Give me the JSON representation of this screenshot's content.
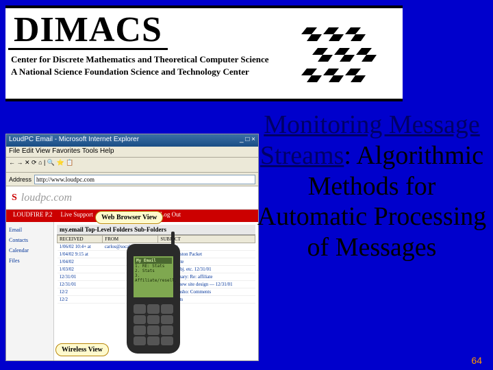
{
  "header": {
    "logo": "DIMACS",
    "sub1": "Center for Discrete Mathematics and Theoretical Computer Science",
    "sub2": "A National Science Foundation Science and Technology Center"
  },
  "title": {
    "line1": "Monitoring Message Streams",
    "colon": ":",
    "rest": "Algorithmic Methods for Automatic Processing of Messages"
  },
  "page_number": "64",
  "screenshot": {
    "window_title": "LoudPC Email - Microsoft Internet Explorer",
    "menubar": "File  Edit  View  Favorites  Tools  Help",
    "address_label": "Address",
    "address_value": "http://www.loudpc.com",
    "banner_logo_s": "S",
    "banner_logo_rest": "loudpc.com",
    "nav_items": [
      "LOUDFIRE P.2",
      "Live Support",
      "FAQ",
      "My Account",
      "Log Out"
    ],
    "sidebar_items": [
      "Email",
      "Contacts",
      "Calendar",
      "Files"
    ],
    "mail_header": "my.email   Top-Level Folders   Sub-Folders",
    "table_cols": [
      "RECEIVED",
      "FROM",
      "SUBJECT"
    ],
    "table_rows": [
      [
        "1/06/02 10:4+ at",
        "carlos@socable.com",
        "RE: Stats"
      ],
      [
        "1/04/02 9:15 at",
        "",
        "Month-Boston Packet"
      ],
      [
        "1/04/02",
        "",
        "Re: web site"
      ],
      [
        "1/03/02",
        "",
        "Re: Rev. obj. etc. 12/31/01"
      ],
      [
        "12/31/01",
        "",
        "RE: Summary: Re: affiliate"
      ],
      [
        "12/31/01",
        "",
        "Affiliate: new site design — 12/31/01"
      ],
      [
        "12/2",
        "",
        "Re: Screensho: Comments"
      ],
      [
        "12/2",
        "",
        "Screenshots"
      ]
    ],
    "callout_browser": "Web Browser View",
    "callout_wireless": "Wireless View",
    "phone_title": "My Email",
    "phone_lines": [
      "1. RE: Stats",
      "2. Stats",
      "3. Affiliate/resell."
    ]
  },
  "colors": {
    "background": "#0000cc",
    "title_underline": "#000066",
    "page_num": "#ff9900"
  }
}
